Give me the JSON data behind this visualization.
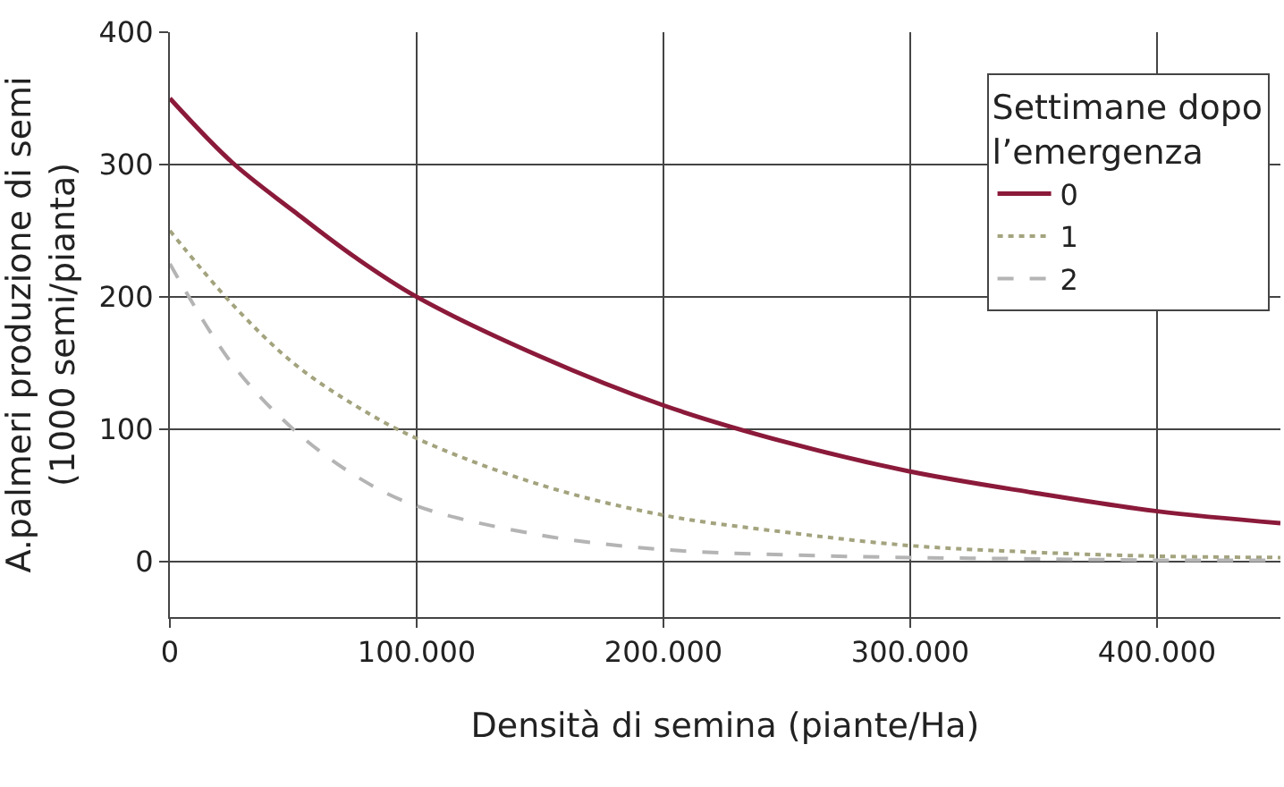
{
  "chart_data": {
    "type": "line",
    "xlabel": "Densità di semina (piante/Ha)",
    "ylabel": "A.palmeri produzione di semi\n(1000 semi/pianta)",
    "legend_title": "Settimane dopo\nl’emergenza",
    "x": [
      0,
      25000,
      50000,
      75000,
      100000,
      150000,
      200000,
      250000,
      300000,
      350000,
      400000,
      450000
    ],
    "series": [
      {
        "name": "0",
        "color": "#8b1a3a",
        "line_style": "solid",
        "values": [
          350,
          302,
          265,
          230,
          200,
          155,
          118,
          90,
          68,
          52,
          38,
          29
        ]
      },
      {
        "name": "1",
        "color": "#a3a37e",
        "line_style": "dotted",
        "values": [
          250,
          195,
          150,
          118,
          93,
          58,
          35,
          22,
          12,
          7,
          4,
          3
        ]
      },
      {
        "name": "2",
        "color": "#b4b4b4",
        "line_style": "dashed",
        "values": [
          225,
          150,
          100,
          65,
          42,
          20,
          9,
          5,
          3,
          2,
          1,
          1
        ]
      }
    ],
    "xlim": [
      0,
      450000
    ],
    "xticks": [
      0,
      {
        "value": 100000,
        "label": "100.000"
      },
      {
        "value": 200000,
        "label": "200.000"
      },
      {
        "value": 300000,
        "label": "300.000"
      },
      {
        "value": 400000,
        "label": "400.000"
      }
    ],
    "ylim": [
      -42,
      400
    ],
    "yticks": [
      0,
      100,
      200,
      300,
      400
    ],
    "grid": true,
    "legend": "top right",
    "marker": "none"
  }
}
